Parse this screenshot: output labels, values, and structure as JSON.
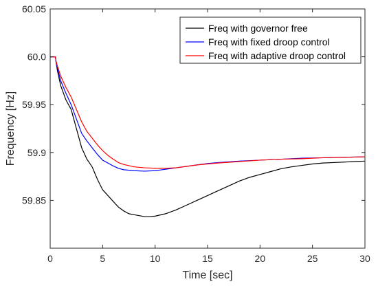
{
  "chart_data": {
    "type": "line",
    "title": "",
    "xlabel": "Time [sec]",
    "ylabel": "Frequency [Hz]",
    "xlim": [
      0,
      30
    ],
    "ylim": [
      59.8,
      60.05
    ],
    "xticks": [
      0,
      5,
      10,
      15,
      20,
      25,
      30
    ],
    "xtick_labels": [
      "0",
      "5",
      "10",
      "15",
      "20",
      "25",
      "30"
    ],
    "yticks": [
      59.85,
      59.9,
      59.95,
      60.0,
      60.05
    ],
    "ytick_labels": [
      "59.85",
      "59.9",
      "59.95",
      "60.0",
      "60.05"
    ],
    "grid": false,
    "legend_position": "top-right",
    "series": [
      {
        "name": "Freq with governor free",
        "color": "#000000",
        "x": [
          0,
          0.5,
          0.55,
          0.7,
          1.0,
          1.5,
          2.0,
          2.5,
          3.0,
          3.5,
          4.0,
          4.5,
          5.0,
          5.5,
          6.0,
          6.5,
          7.0,
          7.5,
          8.0,
          8.5,
          9.0,
          9.5,
          10.0,
          11.0,
          12.0,
          13.0,
          14.0,
          15.0,
          16.0,
          17.0,
          18.0,
          19.0,
          20.0,
          21.0,
          22.0,
          23.0,
          24.0,
          25.0,
          26.0,
          27.0,
          28.0,
          29.0,
          30.0
        ],
        "y": [
          60.0,
          60.0,
          59.995,
          59.985,
          59.97,
          59.955,
          59.945,
          59.925,
          59.905,
          59.893,
          59.885,
          59.872,
          59.861,
          59.855,
          59.849,
          59.843,
          59.839,
          59.836,
          59.835,
          59.834,
          59.833,
          59.833,
          59.8335,
          59.836,
          59.84,
          59.845,
          59.85,
          59.855,
          59.86,
          59.865,
          59.87,
          59.874,
          59.877,
          59.88,
          59.883,
          59.885,
          59.8865,
          59.888,
          59.889,
          59.8895,
          59.89,
          59.8905,
          59.891
        ]
      },
      {
        "name": "Freq with fixed droop control",
        "color": "#0000ff",
        "x": [
          0,
          0.5,
          0.55,
          0.7,
          1.0,
          1.5,
          2.0,
          2.5,
          3.0,
          3.5,
          4.0,
          4.5,
          5.0,
          5.5,
          6.0,
          6.5,
          7.0,
          8.0,
          9.0,
          10.0,
          11.0,
          12.0,
          13.0,
          14.0,
          15.0,
          16.0,
          18.0,
          20.0,
          22.0,
          24.0,
          26.0,
          28.0,
          30.0
        ],
        "y": [
          60.0,
          60.0,
          59.995,
          59.988,
          59.975,
          59.962,
          59.95,
          59.935,
          59.92,
          59.912,
          59.905,
          59.898,
          59.892,
          59.889,
          59.886,
          59.8835,
          59.882,
          59.881,
          59.8805,
          59.881,
          59.8825,
          59.884,
          59.8855,
          59.887,
          59.8885,
          59.8895,
          59.891,
          59.892,
          59.893,
          59.894,
          59.8945,
          59.895,
          59.8955
        ]
      },
      {
        "name": "Freq with adaptive droop control",
        "color": "#ff0000",
        "x": [
          0,
          0.5,
          0.55,
          0.7,
          1.0,
          1.5,
          2.0,
          2.5,
          3.0,
          3.5,
          4.0,
          4.5,
          5.0,
          5.5,
          6.0,
          6.5,
          7.0,
          8.0,
          9.0,
          10.0,
          11.0,
          12.0,
          13.0,
          14.0,
          15.0,
          16.0,
          18.0,
          20.0,
          22.0,
          24.0,
          26.0,
          28.0,
          30.0
        ],
        "y": [
          60.0,
          60.0,
          59.996,
          59.99,
          59.98,
          59.968,
          59.958,
          59.945,
          59.932,
          59.922,
          59.915,
          59.908,
          59.902,
          59.897,
          59.893,
          59.8895,
          59.8875,
          59.885,
          59.884,
          59.8835,
          59.8835,
          59.884,
          59.8855,
          59.887,
          59.888,
          59.889,
          59.8905,
          59.892,
          59.893,
          59.8935,
          59.8945,
          59.895,
          59.8955
        ]
      }
    ]
  }
}
